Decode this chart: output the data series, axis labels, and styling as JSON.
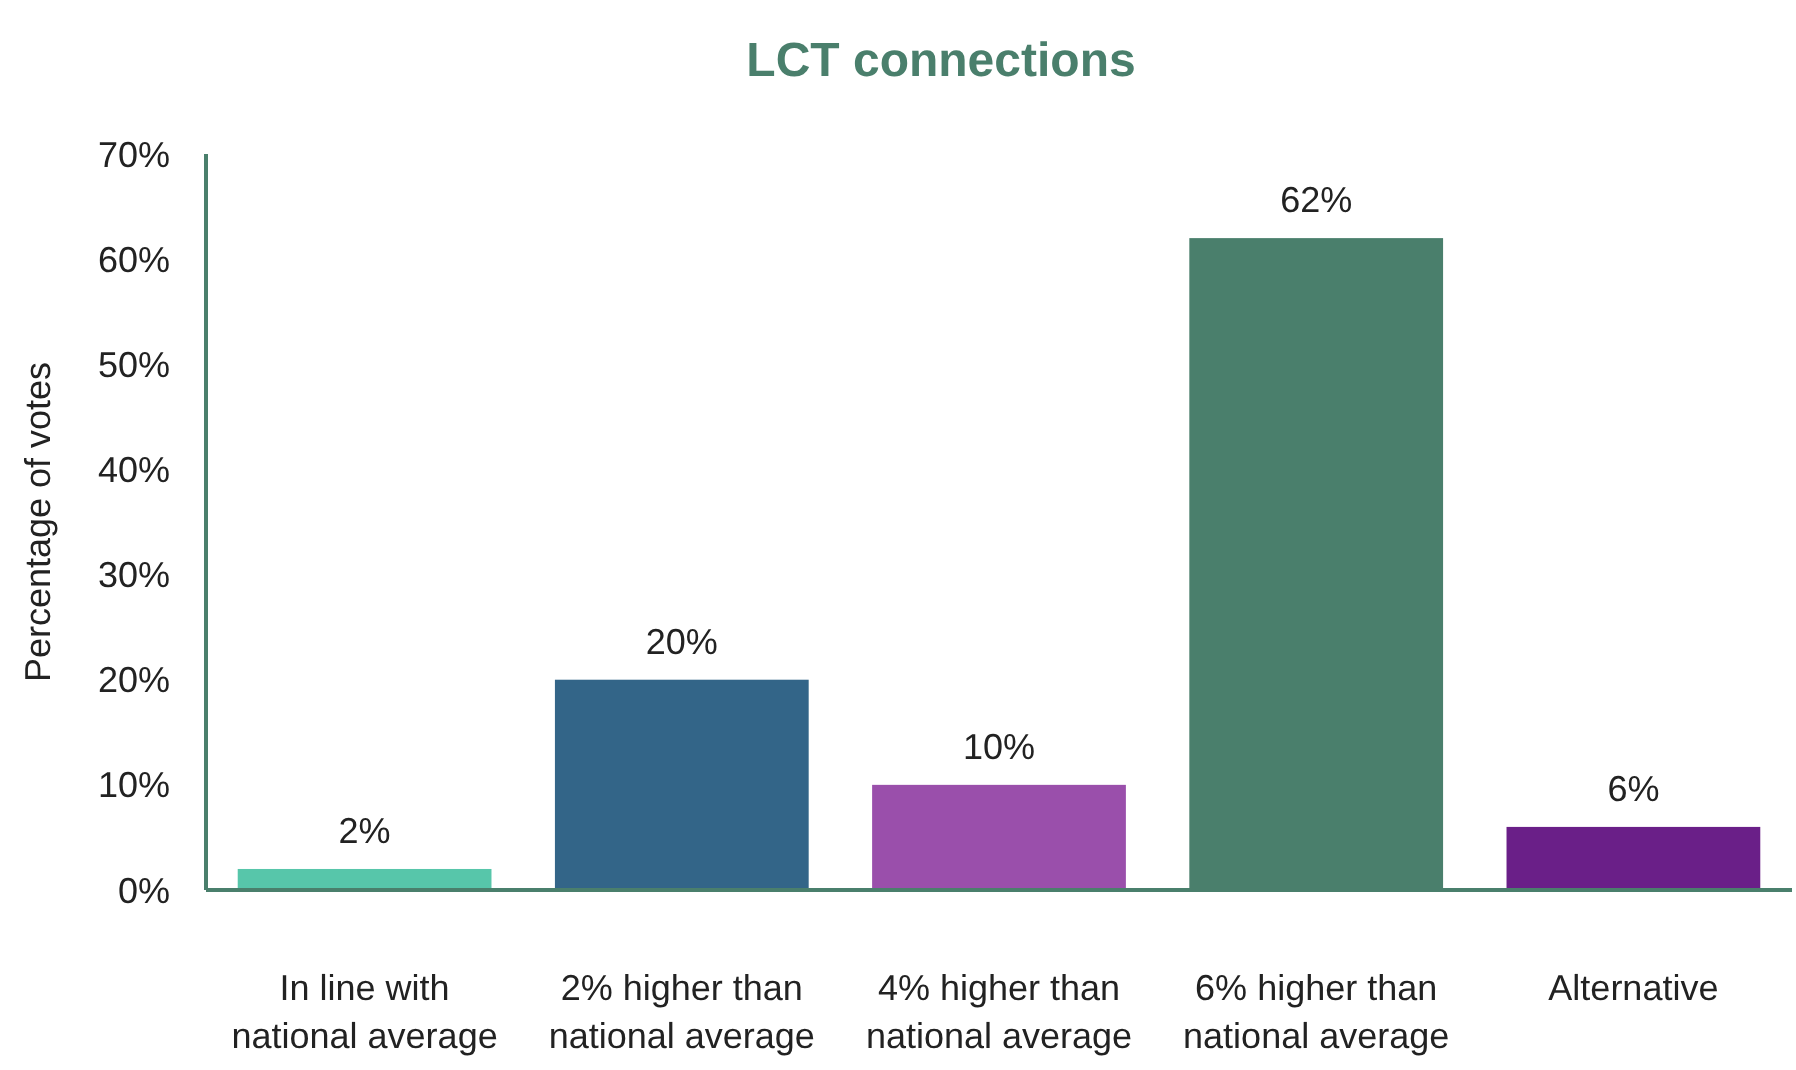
{
  "chart_data": {
    "type": "bar",
    "title": "LCT connections",
    "ylabel": "Percentage of votes",
    "categories": [
      "In line with national average",
      "2% higher than national average",
      "4% higher than national average",
      "6% higher than national average",
      "Alternative"
    ],
    "values": [
      2,
      20,
      10,
      62,
      6
    ],
    "colors": [
      "#57c6aa",
      "#336588",
      "#9a4fab",
      "#4a7f6c",
      "#6a1f88"
    ],
    "ylim": [
      0,
      70
    ],
    "yticks": [
      {
        "value": 0,
        "label": "0%"
      },
      {
        "value": 10,
        "label": "10%"
      },
      {
        "value": 20,
        "label": "20%"
      },
      {
        "value": 30,
        "label": "30%"
      },
      {
        "value": 40,
        "label": "40%"
      },
      {
        "value": 50,
        "label": "50%"
      },
      {
        "value": 60,
        "label": "60%"
      },
      {
        "value": 70,
        "label": "70%"
      }
    ],
    "value_labels": [
      "2%",
      "20%",
      "10%",
      "62%",
      "6%"
    ],
    "grid": false
  }
}
